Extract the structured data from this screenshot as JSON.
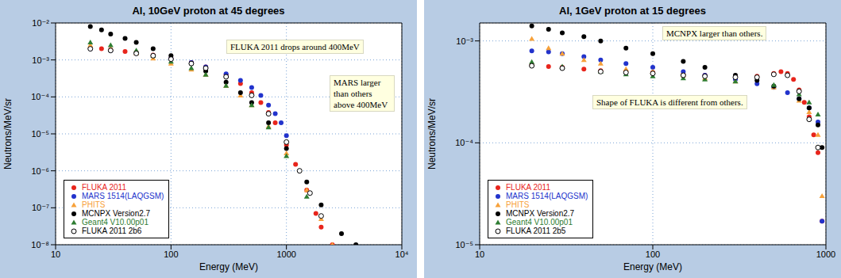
{
  "chart_data": [
    {
      "type": "scatter",
      "title": "Al, 10GeV proton at 45 degrees",
      "x_label": "Energy (MeV)",
      "y_label": "Neutrons/MeV/sr",
      "log": true,
      "grid": true,
      "legend": "lower left",
      "xlim": [
        10,
        10000
      ],
      "xticks": [
        10,
        100,
        1000,
        {
          "value": 10000,
          "label": "10⁴"
        }
      ],
      "ylim": [
        1e-08,
        0.01
      ],
      "yticks": [
        {
          "value": 1e-08,
          "label": "10⁻⁸"
        },
        {
          "value": 1e-07,
          "label": "10⁻⁷"
        },
        {
          "value": 1e-06,
          "label": "10⁻⁶"
        },
        {
          "value": 1e-05,
          "label": "10⁻⁵"
        },
        {
          "value": 0.0001,
          "label": "10⁻⁴"
        },
        {
          "value": 0.001,
          "label": "10⁻³"
        },
        {
          "value": 0.01,
          "label": "10⁻²"
        }
      ],
      "annotations": [
        "FLUKA 2011 drops around 400MeV",
        "MARS larger than others above 400MeV"
      ],
      "series": [
        {
          "name": "FLUKA 2011",
          "color": "#e8251c",
          "marker": "circle",
          "x": [
            20,
            25,
            30,
            40,
            50,
            70,
            100,
            150,
            200,
            300,
            400,
            500,
            600,
            700,
            800,
            1000,
            1200,
            1500,
            1800,
            2000,
            2500
          ],
          "values": [
            0.0021,
            0.002,
            0.0019,
            0.0017,
            0.0016,
            0.00135,
            0.0011,
            0.00085,
            0.00065,
            0.0004,
            0.00023,
            0.00013,
            7e-05,
            3.8e-05,
            2e-05,
            5e-06,
            1.5e-06,
            3e-07,
            7e-08,
            3e-08,
            1e-08
          ]
        },
        {
          "name": "MARS 1514(LAQGSM)",
          "color": "#2233cc",
          "marker": "circle",
          "x": [
            20,
            30,
            50,
            70,
            100,
            150,
            200,
            300,
            400,
            500,
            600,
            700,
            800,
            900,
            1000
          ],
          "values": [
            0.002,
            0.0018,
            0.0015,
            0.0013,
            0.0011,
            0.00085,
            0.00065,
            0.00042,
            0.00028,
            0.00018,
            0.00011,
            6e-05,
            3.5e-05,
            2e-05,
            9e-06
          ]
        },
        {
          "name": "PHITS",
          "color": "#f7a13a",
          "marker": "triangle",
          "x": [
            20,
            30,
            50,
            70,
            100,
            150,
            200,
            300,
            400,
            500,
            700,
            1000,
            1500,
            2000,
            2500
          ],
          "values": [
            0.0025,
            0.002,
            0.0015,
            0.0011,
            0.0008,
            0.00055,
            0.0004,
            0.0002,
            0.00011,
            6e-05,
            1.6e-05,
            3e-06,
            3e-07,
            5e-08,
            1e-08
          ]
        },
        {
          "name": "MCNPX Version2.7",
          "color": "#000000",
          "marker": "circle",
          "x": [
            20,
            25,
            30,
            40,
            50,
            70,
            100,
            150,
            200,
            300,
            400,
            500,
            700,
            1000,
            1500,
            2000,
            3000,
            4000
          ],
          "values": [
            0.008,
            0.0065,
            0.005,
            0.0038,
            0.003,
            0.002,
            0.0013,
            0.0008,
            0.0005,
            0.00025,
            0.00013,
            7e-05,
            2e-05,
            4e-06,
            5e-07,
            1.2e-07,
            2e-08,
            1e-08
          ]
        },
        {
          "name": "Geant4 V10.00p01",
          "color": "#2e7d32",
          "marker": "triangle",
          "x": [
            20,
            30,
            50,
            70,
            100,
            150,
            200,
            300,
            500,
            700,
            1000,
            1500
          ],
          "values": [
            0.003,
            0.0025,
            0.0018,
            0.0013,
            0.0009,
            0.0006,
            0.0004,
            0.0002,
            6e-05,
            1.5e-05,
            2.5e-06,
            2e-07
          ]
        },
        {
          "name": "FLUKA 2011 2b6",
          "color": "#000000",
          "marker": "open circle",
          "x": [
            20,
            30,
            50,
            70,
            100,
            150,
            200,
            300,
            500,
            700,
            1000,
            1300,
            1600,
            2000
          ],
          "values": [
            0.002,
            0.0018,
            0.0015,
            0.0013,
            0.00105,
            0.0008,
            0.0006,
            0.00035,
            0.00011,
            3.5e-05,
            6e-06,
            1e-06,
            2.5e-07,
            6e-08
          ]
        }
      ]
    },
    {
      "type": "scatter",
      "title": "Al, 1GeV proton at 15 degrees",
      "x_label": "Energy (MeV)",
      "y_label": "Neutrons/MeV/sr",
      "log": true,
      "grid": true,
      "legend": "lower left",
      "xlim": [
        10,
        1000
      ],
      "xticks": [
        10,
        100,
        1000
      ],
      "ylim": [
        1e-05,
        0.0015
      ],
      "yticks": [
        {
          "value": 1e-05,
          "label": "10⁻⁵"
        },
        {
          "value": 0.0001,
          "label": "10⁻⁴"
        },
        {
          "value": 0.001,
          "label": "10⁻³"
        }
      ],
      "annotations": [
        "MCNPX larger than others.",
        "Shape of FLUKA is different from others."
      ],
      "series": [
        {
          "name": "FLUKA 2011",
          "color": "#e8251c",
          "marker": "circle",
          "x": [
            20,
            25,
            30,
            40,
            50,
            70,
            100,
            150,
            200,
            300,
            400,
            500,
            550,
            600,
            650,
            700,
            750,
            800,
            850,
            900,
            950
          ],
          "values": [
            0.00058,
            0.00056,
            0.00055,
            0.00053,
            0.00051,
            0.0005,
            0.00049,
            0.00047,
            0.00046,
            0.00045,
            0.00045,
            0.00048,
            0.0005,
            0.00048,
            0.00042,
            0.00033,
            0.00025,
            0.00018,
            0.00012,
            8e-05,
            1.7e-05
          ]
        },
        {
          "name": "MARS 1514(LAQGSM)",
          "color": "#2233cc",
          "marker": "circle",
          "x": [
            20,
            25,
            30,
            40,
            50,
            70,
            100,
            150,
            200,
            300,
            400,
            500,
            600,
            700,
            800,
            900,
            950
          ],
          "values": [
            0.0008,
            0.00078,
            0.00075,
            0.0007,
            0.00065,
            0.0006,
            0.00055,
            0.0005,
            0.00046,
            0.00042,
            0.00038,
            0.00035,
            0.00031,
            0.00027,
            0.00022,
            0.00016,
            1.7e-05
          ]
        },
        {
          "name": "PHITS",
          "color": "#f7a13a",
          "marker": "triangle",
          "x": [
            20,
            25,
            30,
            40,
            50,
            70,
            100,
            150,
            200,
            300,
            500,
            700,
            800,
            900,
            950
          ],
          "values": [
            0.00105,
            0.00085,
            0.00075,
            0.00065,
            0.0006,
            0.00053,
            0.0005,
            0.00046,
            0.00043,
            0.0004,
            0.00035,
            0.00026,
            0.0002,
            0.00012,
            3e-05
          ]
        },
        {
          "name": "MCNPX Version2.7",
          "color": "#000000",
          "marker": "circle",
          "x": [
            20,
            25,
            30,
            40,
            50,
            70,
            100,
            150,
            200,
            300,
            400,
            500,
            700,
            800,
            900,
            950
          ],
          "values": [
            0.0014,
            0.0013,
            0.0012,
            0.0011,
            0.001,
            0.00085,
            0.00075,
            0.00063,
            0.00055,
            0.00046,
            0.00041,
            0.00036,
            0.00027,
            0.00022,
            0.00015,
            9e-05
          ]
        },
        {
          "name": "Geant4 V10.00p01",
          "color": "#2e7d32",
          "marker": "triangle",
          "x": [
            20,
            30,
            50,
            70,
            100,
            150,
            200,
            300,
            500,
            700,
            800,
            900
          ],
          "values": [
            0.00062,
            0.00056,
            0.0005,
            0.00047,
            0.00045,
            0.00043,
            0.00042,
            0.0004,
            0.00037,
            0.0003,
            0.00025,
            0.00019
          ]
        },
        {
          "name": "FLUKA 2011 2b5",
          "color": "#000000",
          "marker": "open circle",
          "x": [
            20,
            30,
            50,
            70,
            100,
            150,
            200,
            300,
            400,
            500,
            600,
            700,
            800,
            900
          ],
          "values": [
            0.00057,
            0.00054,
            0.0005,
            0.00049,
            0.00048,
            0.00046,
            0.00045,
            0.00044,
            0.00044,
            0.00047,
            0.00046,
            0.00032,
            0.00017,
            9e-05
          ]
        }
      ]
    }
  ]
}
